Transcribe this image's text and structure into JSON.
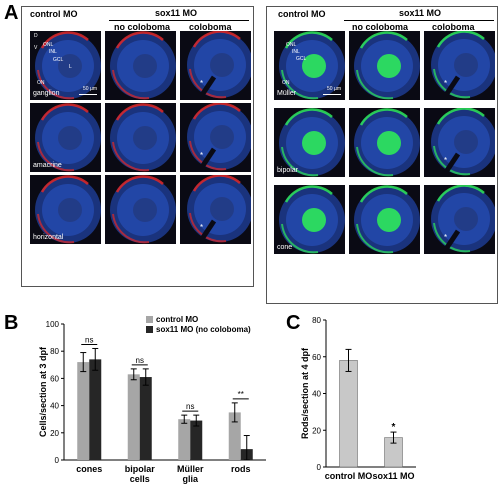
{
  "figure": {
    "panel_a_letter": "A",
    "panel_b_letter": "B",
    "panel_c_letter": "C",
    "left_headers": {
      "control": "control MO",
      "sox11": "sox11 MO",
      "no_coloboma": "no coloboma",
      "coloboma": "coloboma"
    },
    "right_headers": {
      "control": "control MO",
      "sox11": "sox11 MO",
      "no_coloboma": "no coloboma",
      "coloboma": "coloboma"
    },
    "left_row_labels": [
      "ganglion",
      "amacrine",
      "horizontal"
    ],
    "right_row_labels": [
      "Müller",
      "bipolar",
      "cone"
    ],
    "retina_layer_labels": {
      "dorsal": "D",
      "ventral": "V",
      "onl": "ONL",
      "inl": "INL",
      "gcl": "GCL",
      "lens": "L",
      "optic_nerve": "ON"
    },
    "scale_label": "50 µm",
    "colors": {
      "dapi": "#2a55c8",
      "red_marker": "#e02828",
      "green_marker": "#2ee85a",
      "bar_control": "#a6a6a6",
      "bar_sox11": "#262626",
      "bar_c": "#c8c8c8"
    }
  },
  "chart_data": [
    {
      "type": "bar",
      "ylabel": "Cells/section at 3 dpf",
      "ylim": [
        0,
        100
      ],
      "yticks": [
        0,
        20,
        40,
        60,
        80,
        100
      ],
      "categories": [
        "cones",
        "bipolar\ncells",
        "Müller\nglia",
        "rods"
      ],
      "series": [
        {
          "name": "control MO",
          "values": [
            72,
            63,
            30,
            35
          ],
          "errors": [
            7,
            4,
            3,
            7
          ]
        },
        {
          "name": "sox11 MO (no coloboma)",
          "values": [
            74,
            61,
            29,
            8
          ],
          "errors": [
            8,
            6,
            4,
            10
          ]
        }
      ],
      "significance": [
        "ns",
        "ns",
        "ns",
        "**"
      ],
      "legend": "top-right"
    },
    {
      "type": "bar",
      "ylabel": "Rods/section at 4 dpf",
      "ylim": [
        0,
        80
      ],
      "yticks": [
        0,
        20,
        40,
        60,
        80
      ],
      "categories": [
        "control MO",
        "sox11 MO"
      ],
      "values": [
        58,
        16
      ],
      "errors": [
        6,
        3
      ],
      "significance": [
        "",
        "*"
      ]
    }
  ]
}
